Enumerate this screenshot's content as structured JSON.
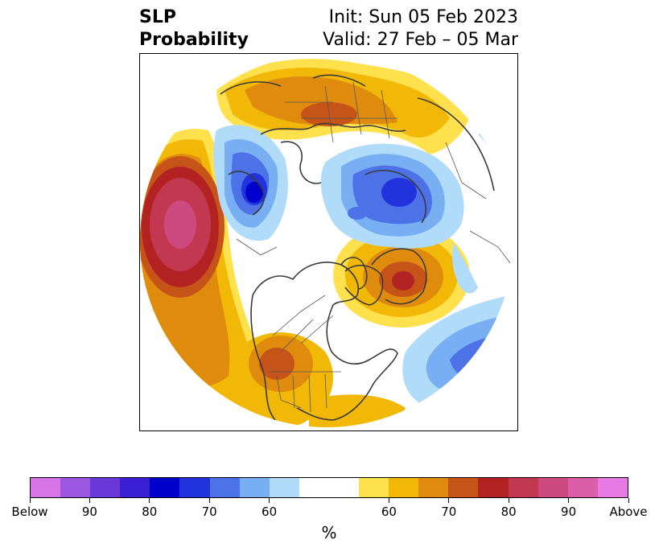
{
  "header": {
    "title_line1": "SLP",
    "title_line2": "Probability",
    "init_text": "Init: Sun 05 Feb 2023",
    "valid_text": "Valid: 27 Feb – 05 Mar"
  },
  "map": {
    "projection": "north-polar-stereographic",
    "features": [
      "coastlines",
      "country-borders",
      "us-state-borders"
    ]
  },
  "colorbar": {
    "colors": [
      "#d774e8",
      "#9c57e0",
      "#6a38d8",
      "#3a1ed4",
      "#0000cd",
      "#2233dd",
      "#4d72e8",
      "#77aff2",
      "#b0dcfa",
      "#ffffff",
      "#ffffff",
      "#ffe14d",
      "#f2b807",
      "#df8c0e",
      "#c65418",
      "#b32222",
      "#c23850",
      "#cd4a80",
      "#db5ea8",
      "#e87ae6"
    ],
    "tick_labels": [
      "Below",
      "90",
      "80",
      "70",
      "60",
      "60",
      "70",
      "80",
      "90",
      "Above"
    ],
    "units": "%"
  }
}
